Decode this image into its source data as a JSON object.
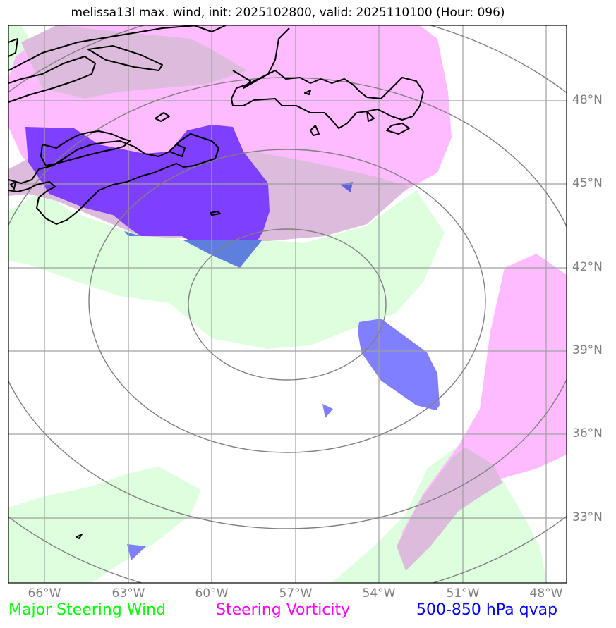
{
  "title": "melissa13l max. wind, init: 2025102800, valid: 2025110100 (Hour: 096)",
  "latitude_labels": [
    "48°N",
    "45°N",
    "42°N",
    "39°N",
    "36°N",
    "33°N"
  ],
  "longitude_labels": [
    "66°W",
    "63°W",
    "60°W",
    "57°W",
    "54°W",
    "51°W",
    "48°W"
  ],
  "legend": [
    {
      "label": "Major Steering Wind",
      "color": "#00ff00"
    },
    {
      "label": "Steering Vorticity",
      "color": "#ff00ff"
    },
    {
      "label": "500-850 hPa qvap",
      "color": "#0000ff"
    }
  ],
  "colors": {
    "wind_fill": "#ddffdd",
    "vorticity_fill": "#ffbbff",
    "vort_wind_overlap": "#ddbbdd",
    "qvap_fill": "#7f7fff",
    "qvap_over_vorticity": "#7f3fff",
    "qvap_over_wind": "#5f7fdf",
    "gridline": "#a0a0a0",
    "range_rings": "#808080",
    "coastline": "#000000"
  }
}
